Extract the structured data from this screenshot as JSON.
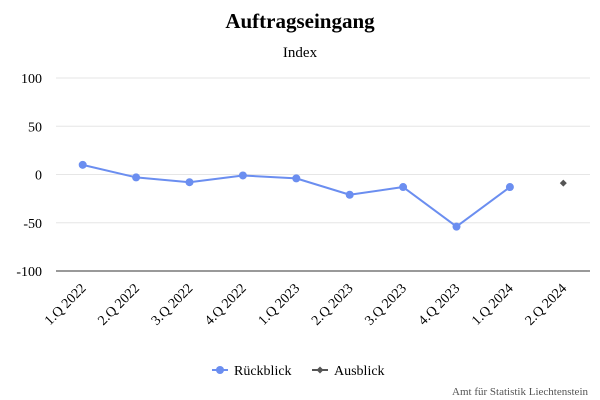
{
  "chart_data": {
    "type": "line",
    "title": "Auftragseingang",
    "subtitle": "Index",
    "categories": [
      "1.Q 2022",
      "2.Q 2022",
      "3.Q 2022",
      "4.Q 2022",
      "1.Q 2023",
      "2.Q 2023",
      "3.Q 2023",
      "4.Q 2023",
      "1.Q 2024",
      "2.Q 2024"
    ],
    "series": [
      {
        "name": "Rückblick",
        "color": "#6b8ef0",
        "values": [
          10,
          -3,
          -8,
          -1,
          -4,
          -21,
          -13,
          -54,
          -13,
          null
        ]
      },
      {
        "name": "Ausblick",
        "color": "#555555",
        "values": [
          null,
          null,
          null,
          null,
          null,
          null,
          null,
          null,
          null,
          -9
        ]
      }
    ],
    "ylim": [
      -100,
      100
    ],
    "yticks": [
      100,
      50,
      0,
      -50,
      -100
    ],
    "grid": true,
    "legend_position": "bottom"
  },
  "credit": "Amt für Statistik Liechtenstein"
}
